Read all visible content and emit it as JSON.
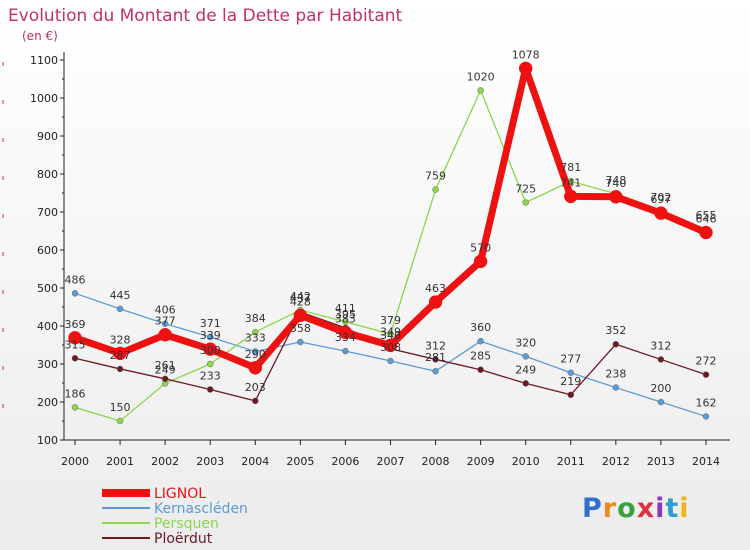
{
  "chart_data": {
    "type": "line",
    "title": "Evolution du Montant de la Dette par Habitant",
    "subtitle": "(en €)",
    "xlabel": "",
    "ylabel": "",
    "ylim": [
      100,
      1100
    ],
    "yticks": [
      100,
      200,
      300,
      400,
      500,
      600,
      700,
      800,
      900,
      1000,
      1100
    ],
    "x": [
      "2000",
      "2001",
      "2002",
      "2003",
      "2004",
      "2005",
      "2006",
      "2007",
      "2008",
      "2009",
      "2010",
      "2011",
      "2012",
      "2013",
      "2014"
    ],
    "legend_position": "bottom-left",
    "grid": false,
    "series": [
      {
        "name": "Kernascléden",
        "color": "#5b9bd5",
        "values": [
          486,
          445,
          406,
          371,
          333,
          358,
          334,
          308,
          281,
          360,
          320,
          277,
          238,
          200,
          162
        ]
      },
      {
        "name": "Persquen",
        "color": "#8cd64a",
        "values": [
          186,
          150,
          249,
          300,
          384,
          442,
          411,
          379,
          759,
          1020,
          725,
          781,
          748,
          702,
          655
        ]
      },
      {
        "name": "Ploërdut",
        "color": "#6b1a22",
        "values": [
          315,
          287,
          261,
          233,
          203,
          437,
          395,
          340,
          312,
          285,
          249,
          219,
          352,
          312,
          272
        ]
      },
      {
        "name": "LIGNOL",
        "color": "#ee1111",
        "values": [
          369,
          328,
          377,
          339,
          290,
          428,
          383,
          349,
          463,
          570,
          1078,
          741,
          740,
          697,
          646
        ]
      }
    ]
  },
  "brand": {
    "logo_text": "Proxiti",
    "logo_colors": [
      "#2f6fd0",
      "#f08a1c",
      "#3aa03a",
      "#e03040",
      "#8a3ab8",
      "#2f9fd0",
      "#f0b020"
    ]
  }
}
